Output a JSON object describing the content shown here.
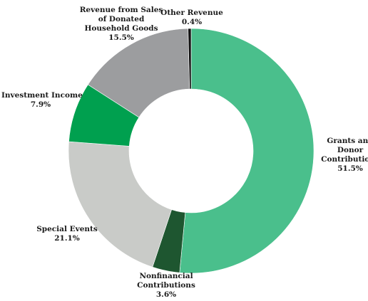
{
  "chart_data": {
    "type": "pie",
    "donut": true,
    "title": "",
    "slices": [
      {
        "label": "Grants and Donor Contributions",
        "label_lines": [
          "Grants and",
          "Donor",
          "Contributions"
        ],
        "value": 51.5,
        "display": "51.5%",
        "color": "#4abf8c"
      },
      {
        "label": "Nonfinancial Contributions",
        "label_lines": [
          "Nonfinancial",
          "Contributions"
        ],
        "value": 3.6,
        "display": "3.6%",
        "color": "#1e5630"
      },
      {
        "label": "Special Events",
        "label_lines": [
          "Special Events"
        ],
        "value": 21.1,
        "display": "21.1%",
        "color": "#c9cbc8"
      },
      {
        "label": "Investment Income",
        "label_lines": [
          "Investment Income"
        ],
        "value": 7.9,
        "display": "7.9%",
        "color": "#00a04f"
      },
      {
        "label": "Revenue from Sales of Donated Household Goods",
        "label_lines": [
          "Revenue from Sales",
          "of Donated",
          "Household Goods"
        ],
        "value": 15.5,
        "display": "15.5%",
        "color": "#9c9d9f"
      },
      {
        "label": "Other Revenue",
        "label_lines": [
          "Other Revenue"
        ],
        "value": 0.4,
        "display": "0.4%",
        "color": "#111111"
      }
    ]
  }
}
